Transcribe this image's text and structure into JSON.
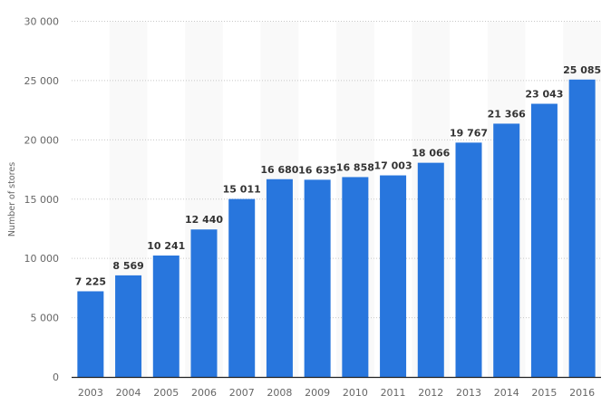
{
  "chart_data": {
    "type": "bar",
    "title": "",
    "xlabel": "",
    "ylabel": "Number of stores",
    "categories": [
      "2003",
      "2004",
      "2005",
      "2006",
      "2007",
      "2008",
      "2009",
      "2010",
      "2011",
      "2012",
      "2013",
      "2014",
      "2015",
      "2016"
    ],
    "values": [
      7225,
      8569,
      10241,
      12440,
      15011,
      16680,
      16635,
      16858,
      17003,
      18066,
      19767,
      21366,
      23043,
      25085
    ],
    "value_labels": [
      "7 225",
      "8 569",
      "10 241",
      "12 440",
      "15 011",
      "16 680",
      "16 635",
      "16 858",
      "17 003",
      "18 066",
      "19 767",
      "21 366",
      "23 043",
      "25 085"
    ],
    "ylim": [
      0,
      30000
    ],
    "yticks": [
      0,
      5000,
      10000,
      15000,
      20000,
      25000,
      30000
    ],
    "ytick_labels": [
      "0",
      "5 000",
      "10 000",
      "15 000",
      "20 000",
      "25 000",
      "30 000"
    ],
    "grid": true,
    "colors": {
      "bar": "#2876dd",
      "stripe": "#f9f9f9"
    }
  }
}
